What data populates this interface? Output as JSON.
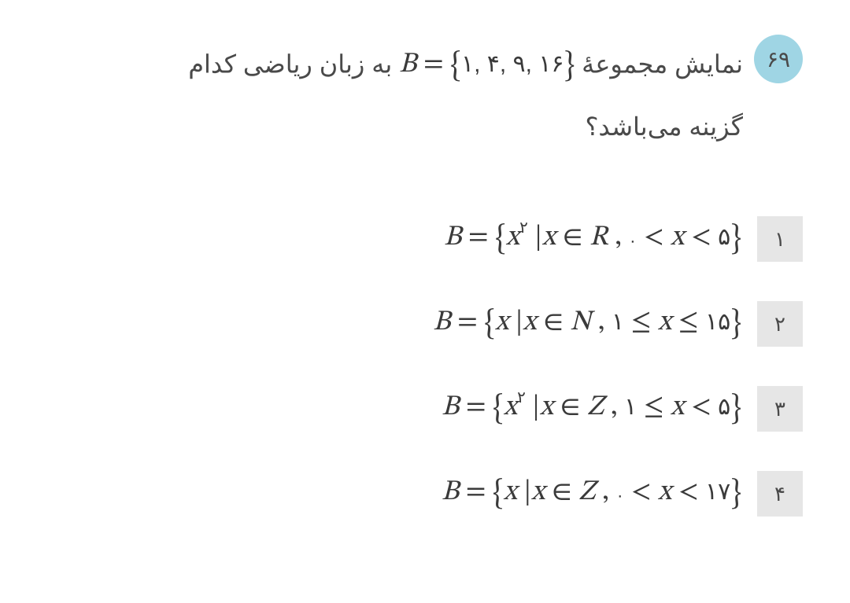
{
  "question": {
    "number": "۶۹",
    "text_part1": "نمایش مجموعهٔ ",
    "set_expr_prefix": "B",
    "set_expr_eq": " = ",
    "set_expr_open": "{",
    "set_expr_vals": "۱, ۴, ۹, ۱۶",
    "set_expr_close": "}",
    "text_part2": " به زبان ریاضی کدام",
    "text_line2": "گزینه می‌باشد؟"
  },
  "options": [
    {
      "num": "۱",
      "prefix": "B",
      "eq": " = ",
      "open": "{",
      "elem1": "x",
      "sup": "۲",
      "bar": " |",
      "elem2": "x",
      "in": " ∈ ",
      "setname": "R",
      "comma": " , ",
      "lb": "۰",
      "rel1": " < ",
      "var": "x",
      "rel2": " < ",
      "ub": "۵",
      "close": "}"
    },
    {
      "num": "۲",
      "prefix": "B",
      "eq": " = ",
      "open": "{",
      "elem1": "x",
      "sup": "",
      "bar": " |",
      "elem2": "x",
      "in": " ∈ ",
      "setname": "N",
      "comma": " , ",
      "lb": "۱",
      "rel1": " ≤ ",
      "var": "x",
      "rel2": " ≤ ",
      "ub": "۱۵",
      "close": "}"
    },
    {
      "num": "۳",
      "prefix": "B",
      "eq": " = ",
      "open": "{",
      "elem1": "x",
      "sup": "۲",
      "bar": " |",
      "elem2": "x",
      "in": " ∈ ",
      "setname": "Z",
      "comma": " , ",
      "lb": "۱",
      "rel1": " ≤ ",
      "var": "x",
      "rel2": " < ",
      "ub": "۵",
      "close": "}"
    },
    {
      "num": "۴",
      "prefix": "B",
      "eq": " = ",
      "open": "{",
      "elem1": "x",
      "sup": "",
      "bar": " |",
      "elem2": "x",
      "in": " ∈ ",
      "setname": "Z",
      "comma": " , ",
      "lb": "۰",
      "rel1": " < ",
      "var": "x",
      "rel2": " < ",
      "ub": "۱۷",
      "close": "}"
    }
  ],
  "colors": {
    "badge_bg": "#9fd5e4",
    "opt_bg": "#e6e6e6",
    "text": "#4a4a4a"
  }
}
